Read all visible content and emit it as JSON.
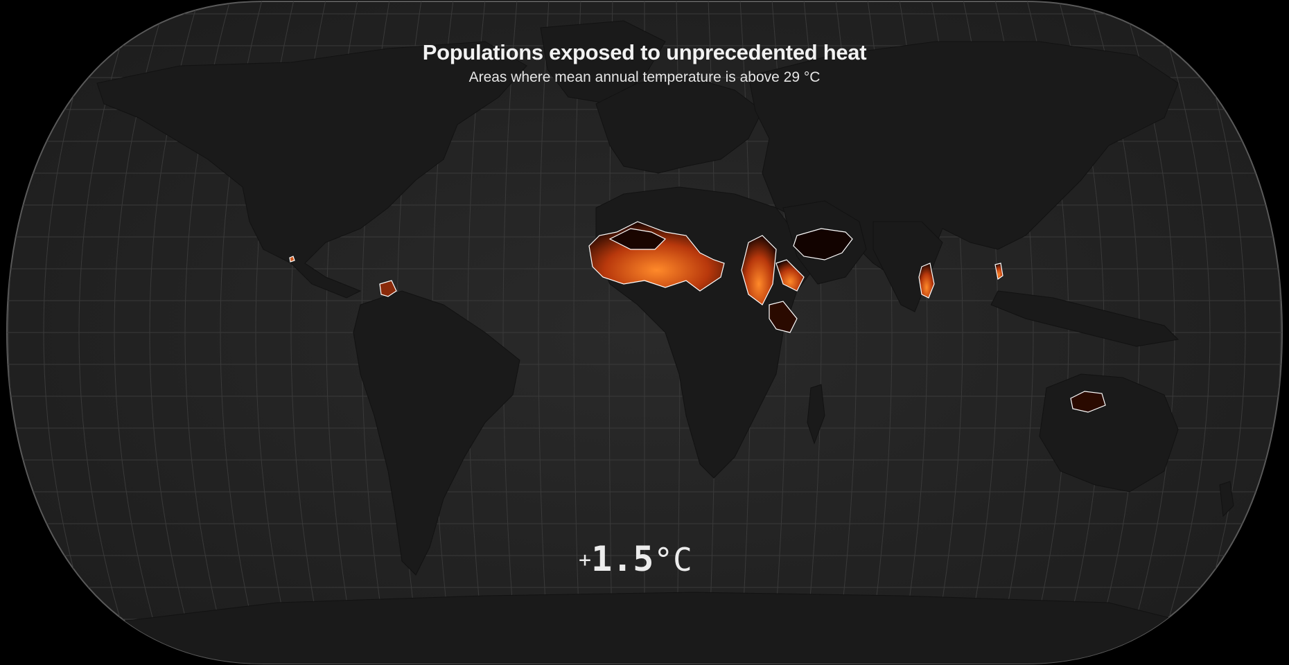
{
  "title": "Populations exposed to unprecedented heat",
  "subtitle": "Areas where mean annual temperature is above 29 °C",
  "scenario": {
    "sign": "+",
    "value": "1.5",
    "unit": "°C"
  },
  "map": {
    "projection": "natural-earth",
    "graticule": true,
    "colors": {
      "background": "#000000",
      "ocean": "#262626",
      "land": "#1c1c1c",
      "graticule": "#3a3a3a",
      "heat_low": "#7a1a05",
      "heat_high": "#ff8a2a",
      "outline": "#ffffff"
    },
    "hot_regions": [
      "Sahel",
      "Sudan",
      "Arabian Peninsula",
      "Horn of Africa",
      "Southern India",
      "Mainland Southeast Asia",
      "Northern Australia",
      "Central America",
      "Northern South America"
    ]
  }
}
